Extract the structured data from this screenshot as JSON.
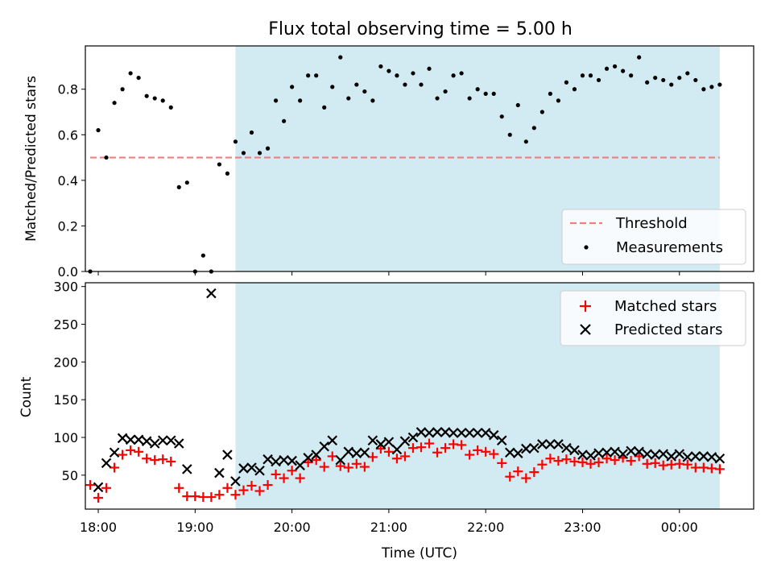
{
  "chart_data": [
    {
      "type": "scatter",
      "title": "Flux total observing time = 5.00 h",
      "xlabel": "",
      "ylabel": "Matched/Predicted stars",
      "ylim": [
        0,
        0.99
      ],
      "xlim": [
        "17:52",
        "00:46"
      ],
      "yticks": [
        "0.0",
        "0.2",
        "0.4",
        "0.6",
        "0.8"
      ],
      "grid": false,
      "legend_position": "lower-right",
      "observing_window": {
        "start": "19:25",
        "end": "00:25",
        "color": "#add8e6"
      },
      "threshold": {
        "name": "Threshold",
        "value": 0.5,
        "x_start": "17:55",
        "x_end": "00:25",
        "color": "#f08080"
      },
      "series": [
        {
          "name": "Measurements",
          "color": "#000000",
          "x": [
            "17:55",
            "18:00",
            "18:05",
            "18:10",
            "18:15",
            "18:20",
            "18:25",
            "18:30",
            "18:35",
            "18:40",
            "18:45",
            "18:50",
            "18:55",
            "19:00",
            "19:05",
            "19:10",
            "19:15",
            "19:20",
            "19:25",
            "19:30",
            "19:35",
            "19:40",
            "19:45",
            "19:50",
            "19:55",
            "20:00",
            "20:05",
            "20:10",
            "20:15",
            "20:20",
            "20:25",
            "20:30",
            "20:35",
            "20:40",
            "20:45",
            "20:50",
            "20:55",
            "21:00",
            "21:05",
            "21:10",
            "21:15",
            "21:20",
            "21:25",
            "21:30",
            "21:35",
            "21:40",
            "21:45",
            "21:50",
            "21:55",
            "22:00",
            "22:05",
            "22:10",
            "22:15",
            "22:20",
            "22:25",
            "22:30",
            "22:35",
            "22:40",
            "22:45",
            "22:50",
            "22:55",
            "23:00",
            "23:05",
            "23:10",
            "23:15",
            "23:20",
            "23:25",
            "23:30",
            "23:35",
            "23:40",
            "23:45",
            "23:50",
            "23:55",
            "00:00",
            "00:05",
            "00:10",
            "00:15",
            "00:20",
            "00:25"
          ],
          "y": [
            0.0,
            0.62,
            0.5,
            0.74,
            0.8,
            0.87,
            0.85,
            0.77,
            0.76,
            0.75,
            0.72,
            0.37,
            0.39,
            0.0,
            0.07,
            0.0,
            0.47,
            0.43,
            0.57,
            0.52,
            0.61,
            0.52,
            0.54,
            0.75,
            0.66,
            0.81,
            0.75,
            0.86,
            0.86,
            0.72,
            0.81,
            0.94,
            0.76,
            0.82,
            0.79,
            0.75,
            0.9,
            0.88,
            0.86,
            0.82,
            0.87,
            0.82,
            0.89,
            0.76,
            0.79,
            0.86,
            0.87,
            0.76,
            0.8,
            0.78,
            0.78,
            0.68,
            0.6,
            0.73,
            0.57,
            0.63,
            0.7,
            0.78,
            0.75,
            0.83,
            0.8,
            0.86,
            0.86,
            0.84,
            0.89,
            0.9,
            0.88,
            0.86,
            0.94,
            0.83,
            0.85,
            0.84,
            0.82,
            0.85,
            0.87,
            0.84,
            0.8,
            0.81,
            0.82
          ]
        }
      ]
    },
    {
      "type": "scatter",
      "title": "",
      "xlabel": "Time (UTC)",
      "ylabel": "Count",
      "ylim": [
        5,
        305
      ],
      "xlim": [
        "17:52",
        "00:46"
      ],
      "xticks": [
        "18:00",
        "19:00",
        "20:00",
        "21:00",
        "22:00",
        "23:00",
        "00:00"
      ],
      "yticks": [
        "50",
        "100",
        "150",
        "200",
        "250",
        "300"
      ],
      "grid": false,
      "legend_position": "top-right",
      "observing_window": {
        "start": "19:25",
        "end": "00:25",
        "color": "#add8e6"
      },
      "series": [
        {
          "name": "Matched stars",
          "color": "#ff0000",
          "marker": "plus",
          "x": [
            "17:55",
            "18:00",
            "18:05",
            "18:10",
            "18:15",
            "18:20",
            "18:25",
            "18:30",
            "18:35",
            "18:40",
            "18:45",
            "18:50",
            "18:55",
            "19:00",
            "19:05",
            "19:10",
            "19:15",
            "19:20",
            "19:25",
            "19:30",
            "19:35",
            "19:40",
            "19:45",
            "19:50",
            "19:55",
            "20:00",
            "20:05",
            "20:10",
            "20:15",
            "20:20",
            "20:25",
            "20:30",
            "20:35",
            "20:40",
            "20:45",
            "20:50",
            "20:55",
            "21:00",
            "21:05",
            "21:10",
            "21:15",
            "21:20",
            "21:25",
            "21:30",
            "21:35",
            "21:40",
            "21:45",
            "21:50",
            "21:55",
            "22:00",
            "22:05",
            "22:10",
            "22:15",
            "22:20",
            "22:25",
            "22:30",
            "22:35",
            "22:40",
            "22:45",
            "22:50",
            "22:55",
            "23:00",
            "23:05",
            "23:10",
            "23:15",
            "23:20",
            "23:25",
            "23:30",
            "23:35",
            "23:40",
            "23:45",
            "23:50",
            "23:55",
            "00:00",
            "00:05",
            "00:10",
            "00:15",
            "00:20",
            "00:25"
          ],
          "y": [
            37,
            20,
            33,
            60,
            77,
            83,
            81,
            72,
            70,
            71,
            68,
            33,
            22,
            22,
            21,
            21,
            24,
            33,
            24,
            30,
            36,
            29,
            37,
            51,
            46,
            56,
            46,
            67,
            70,
            61,
            75,
            62,
            60,
            65,
            61,
            74,
            85,
            81,
            72,
            75,
            86,
            87,
            92,
            80,
            86,
            91,
            90,
            77,
            83,
            81,
            78,
            66,
            48,
            55,
            46,
            54,
            64,
            72,
            69,
            71,
            68,
            67,
            65,
            67,
            72,
            70,
            73,
            69,
            75,
            65,
            66,
            63,
            64,
            65,
            64,
            60,
            60,
            59,
            58
          ]
        },
        {
          "name": "Predicted stars",
          "color": "#000000",
          "marker": "x",
          "x": [
            "18:00",
            "18:05",
            "18:10",
            "18:15",
            "18:20",
            "18:25",
            "18:30",
            "18:35",
            "18:40",
            "18:45",
            "18:50",
            "18:55",
            "19:10",
            "19:15",
            "19:20",
            "19:25",
            "19:30",
            "19:35",
            "19:40",
            "19:45",
            "19:50",
            "19:55",
            "20:00",
            "20:05",
            "20:10",
            "20:15",
            "20:20",
            "20:25",
            "20:30",
            "20:35",
            "20:40",
            "20:45",
            "20:50",
            "20:55",
            "21:00",
            "21:05",
            "21:10",
            "21:15",
            "21:20",
            "21:25",
            "21:30",
            "21:35",
            "21:40",
            "21:45",
            "21:50",
            "21:55",
            "22:00",
            "22:05",
            "22:10",
            "22:15",
            "22:20",
            "22:25",
            "22:30",
            "22:35",
            "22:40",
            "22:45",
            "22:50",
            "22:55",
            "23:00",
            "23:05",
            "23:10",
            "23:15",
            "23:20",
            "23:25",
            "23:30",
            "23:35",
            "23:40",
            "23:45",
            "23:50",
            "23:55",
            "00:00",
            "00:05",
            "00:10",
            "00:15",
            "00:20",
            "00:25"
          ],
          "y": [
            34,
            66,
            80,
            99,
            97,
            97,
            95,
            92,
            96,
            96,
            92,
            58,
            291,
            53,
            77,
            42,
            59,
            60,
            56,
            71,
            68,
            70,
            69,
            63,
            73,
            77,
            88,
            96,
            70,
            81,
            79,
            80,
            96,
            91,
            94,
            84,
            95,
            100,
            107,
            106,
            107,
            107,
            106,
            106,
            106,
            106,
            106,
            103,
            96,
            80,
            79,
            85,
            86,
            91,
            91,
            91,
            86,
            83,
            77,
            76,
            79,
            80,
            81,
            78,
            82,
            81,
            78,
            77,
            78,
            75,
            78,
            74,
            75,
            75,
            74,
            72
          ]
        }
      ]
    }
  ]
}
